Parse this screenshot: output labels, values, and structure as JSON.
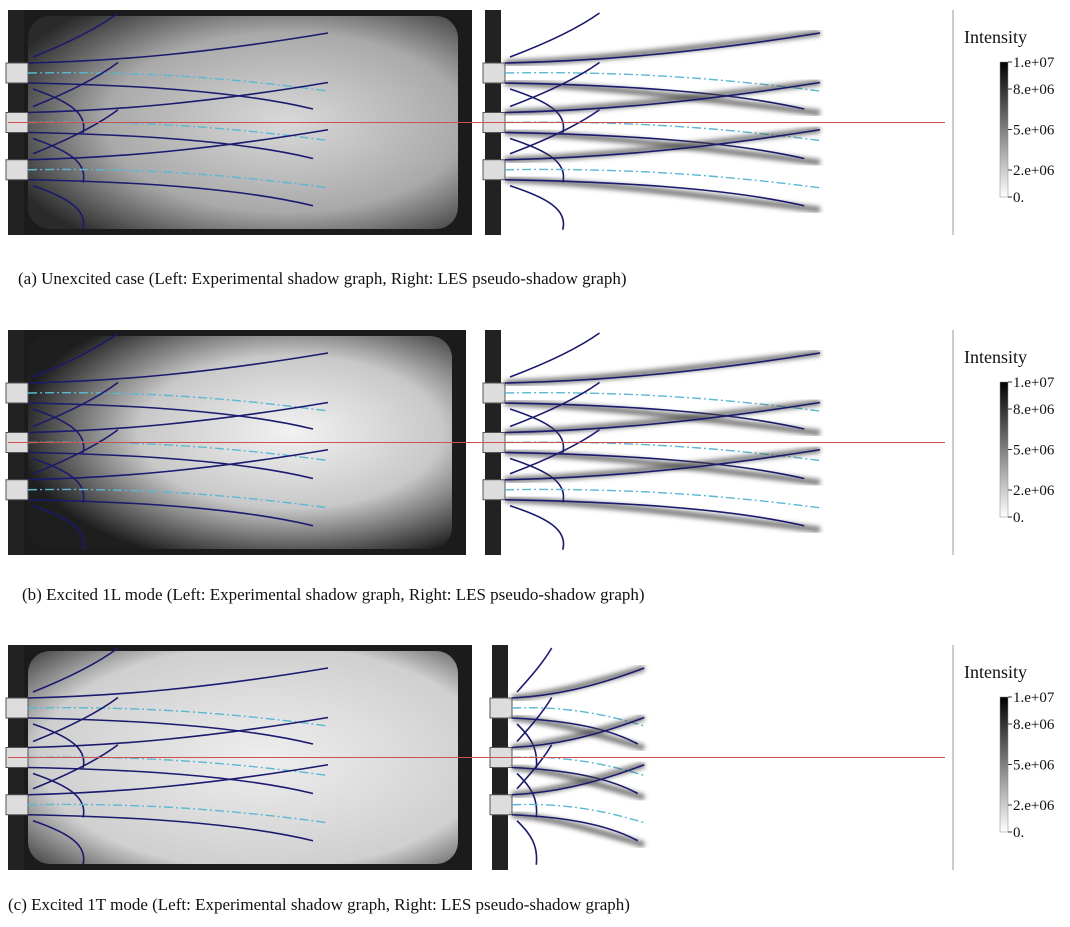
{
  "panels": [
    {
      "caption": "(a) Unexcited case (Left: Experimental shadow graph, Right: LES pseudo-shadow graph)",
      "colorbar": {
        "title": "Intensity",
        "ticks": [
          "1.e+07",
          "8.e+06",
          "5.e+06",
          "2.e+06",
          "0."
        ]
      }
    },
    {
      "caption": "(b) Excited 1L mode (Left: Experimental shadow graph, Right: LES pseudo-shadow graph)",
      "colorbar": {
        "title": "Intensity",
        "ticks": [
          "1.e+07",
          "8.e+06",
          "5.e+06",
          "2.e+06",
          "0."
        ]
      }
    },
    {
      "caption": "(c) Excited 1T mode (Left: Experimental shadow graph, Right: LES pseudo-shadow graph)",
      "colorbar": {
        "title": "Intensity",
        "ticks": [
          "1.e+07",
          "8.e+06",
          "5.e+06",
          "2.e+06",
          "0."
        ]
      }
    }
  ]
}
